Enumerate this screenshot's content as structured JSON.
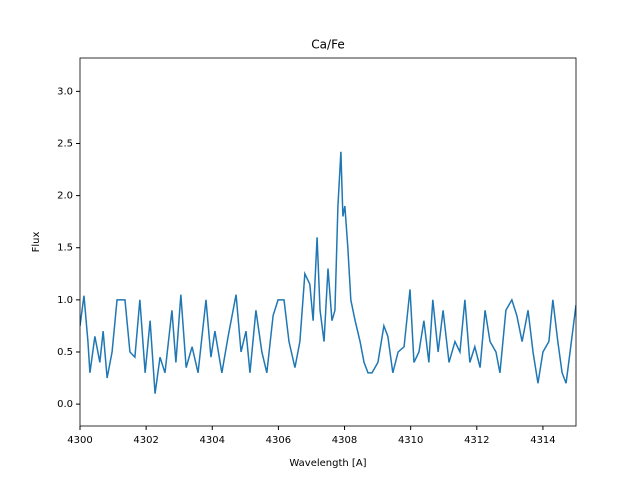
{
  "chart_data": {
    "type": "line",
    "title": "Ca/Fe",
    "xlabel": "Wavelength [A]",
    "ylabel": "Flux",
    "x": [
      4300,
      4300.12,
      4300.24,
      4300.3,
      4300.45,
      4300.6,
      4300.7,
      4300.82,
      4300.97,
      4301.12,
      4301.36,
      4301.51,
      4301.66,
      4301.81,
      4301.97,
      4302.12,
      4302.27,
      4302.42,
      4302.57,
      4302.78,
      4302.9,
      4303.05,
      4303.21,
      4303.39,
      4303.57,
      4303.81,
      4303.96,
      4304.08,
      4304.29,
      4304.48,
      4304.72,
      4304.87,
      4305.02,
      4305.14,
      4305.32,
      4305.5,
      4305.65,
      4305.84,
      4305.99,
      4306.17,
      4306.32,
      4306.5,
      4306.65,
      4306.8,
      4306.95,
      4307.05,
      4307.17,
      4307.26,
      4307.38,
      4307.5,
      4307.62,
      4307.71,
      4307.8,
      4307.89,
      4307.95,
      4308.01,
      4308.1,
      4308.19,
      4308.32,
      4308.47,
      4308.59,
      4308.71,
      4308.83,
      4309.01,
      4309.19,
      4309.31,
      4309.46,
      4309.62,
      4309.8,
      4309.98,
      4310.1,
      4310.25,
      4310.4,
      4310.55,
      4310.67,
      4310.83,
      4310.98,
      4311.16,
      4311.34,
      4311.49,
      4311.64,
      4311.79,
      4311.94,
      4312.1,
      4312.25,
      4312.4,
      4312.58,
      4312.7,
      4312.88,
      4313.06,
      4313.21,
      4313.37,
      4313.55,
      4313.7,
      4313.85,
      4314,
      4314.18,
      4314.3,
      4314.45,
      4314.58,
      4314.7,
      4314.82,
      4315
    ],
    "series": [
      {
        "color": "#1f77b4",
        "values": [
          0.75,
          1.04,
          0.6,
          0.3,
          0.65,
          0.4,
          0.7,
          0.25,
          0.5,
          1.0,
          1.0,
          0.5,
          0.45,
          1.0,
          0.3,
          0.8,
          0.1,
          0.45,
          0.3,
          0.9,
          0.4,
          1.05,
          0.35,
          0.55,
          0.3,
          1.0,
          0.45,
          0.7,
          0.3,
          0.65,
          1.05,
          0.5,
          0.7,
          0.3,
          0.9,
          0.5,
          0.3,
          0.85,
          1.0,
          1.0,
          0.6,
          0.35,
          0.6,
          1.25,
          1.15,
          0.8,
          1.6,
          0.9,
          0.6,
          1.3,
          0.8,
          0.9,
          1.9,
          2.42,
          1.8,
          1.9,
          1.5,
          1.0,
          0.8,
          0.6,
          0.4,
          0.3,
          0.3,
          0.4,
          0.75,
          0.65,
          0.3,
          0.5,
          0.55,
          1.1,
          0.4,
          0.5,
          0.8,
          0.4,
          1.0,
          0.5,
          0.9,
          0.4,
          0.6,
          0.5,
          1.0,
          0.4,
          0.55,
          0.35,
          0.9,
          0.6,
          0.5,
          0.3,
          0.9,
          1.0,
          0.85,
          0.6,
          0.9,
          0.5,
          0.2,
          0.5,
          0.6,
          1.0,
          0.6,
          0.3,
          0.2,
          0.5,
          0.95
        ]
      }
    ],
    "xlim": [
      4300,
      4315
    ],
    "ylim": [
      -0.21,
      3.32
    ],
    "xticks": [
      4300,
      4302,
      4304,
      4306,
      4308,
      4310,
      4312,
      4314
    ],
    "yticks": [
      {
        "value": 0,
        "label": "0.0"
      },
      {
        "value": 0.5,
        "label": "0.5"
      },
      {
        "value": 1,
        "label": "1.0"
      },
      {
        "value": 1.5,
        "label": "1.5"
      },
      {
        "value": 2,
        "label": "2.0"
      },
      {
        "value": 2.5,
        "label": "2.5"
      },
      {
        "value": 3,
        "label": "3.0"
      }
    ]
  }
}
